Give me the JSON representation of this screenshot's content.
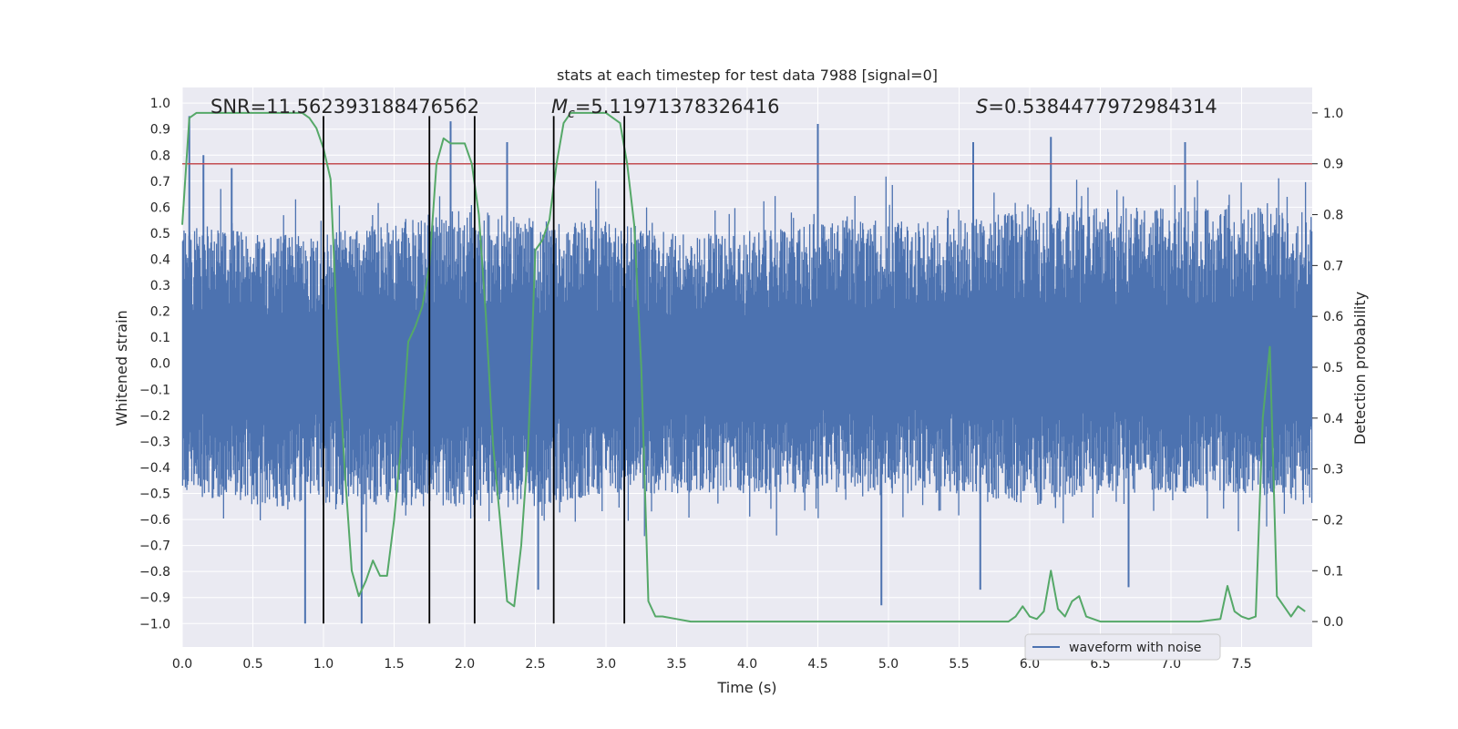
{
  "chart_data": {
    "type": "line",
    "title": "stats at each timestep for test data 7988 [signal=0]",
    "xlabel": "Time (s)",
    "ylabel_left": "Whitened strain",
    "ylabel_right": "Detection probability",
    "xlim": [
      0,
      8
    ],
    "ylim_left": [
      -1.09,
      1.06
    ],
    "ylim_right": [
      -0.05,
      1.05
    ],
    "grid": true,
    "legend_placement": "lower-right",
    "x_ticks": [
      "0.0",
      "0.5",
      "1.0",
      "1.5",
      "2.0",
      "2.5",
      "3.0",
      "3.5",
      "4.0",
      "4.5",
      "5.0",
      "5.5",
      "6.0",
      "6.5",
      "7.0",
      "7.5"
    ],
    "y_ticks_left": [
      "1.0",
      "0.9",
      "0.8",
      "0.7",
      "0.6",
      "0.5",
      "0.4",
      "0.3",
      "0.2",
      "0.1",
      "0.0",
      "−0.1",
      "−0.2",
      "−0.3",
      "−0.4",
      "−0.5",
      "−0.6",
      "−0.7",
      "−0.8",
      "−0.9",
      "−1.0"
    ],
    "y_ticks_right": [
      "1.0",
      "0.9",
      "0.8",
      "0.7",
      "0.6",
      "0.5",
      "0.4",
      "0.3",
      "0.2",
      "0.1",
      "0.0"
    ],
    "annotations": {
      "snr": "SNR=11.562393188476562",
      "mc_symbol": "M",
      "mc_sub": "c",
      "mc_value": "=5.11971378326416",
      "s_symbol": "S",
      "s_value": "=0.5384477972984314"
    },
    "threshold": {
      "value": 0.9,
      "axis": "right",
      "color": "#c44e52"
    },
    "vertical_lines": {
      "x": [
        1.0,
        1.75,
        2.07,
        2.63,
        3.13
      ],
      "y_range": [
        -1.0,
        0.95
      ],
      "color": "#000000"
    },
    "series": [
      {
        "name": "waveform with noise",
        "axis": "left",
        "color": "#4c72b0",
        "kind": "dense noisy strain",
        "envelope": {
          "x": [
            0.0,
            0.5,
            1.0,
            1.5,
            2.0,
            2.5,
            3.0,
            3.5,
            4.0,
            4.5,
            5.0,
            5.5,
            6.0,
            6.5,
            7.0,
            7.5,
            8.0
          ],
          "upper": [
            0.55,
            0.5,
            0.5,
            0.55,
            0.6,
            0.55,
            0.55,
            0.5,
            0.5,
            0.55,
            0.55,
            0.55,
            0.6,
            0.6,
            0.6,
            0.6,
            0.6
          ],
          "lower": [
            -0.5,
            -0.55,
            -0.55,
            -0.55,
            -0.55,
            -0.55,
            -0.5,
            -0.5,
            -0.5,
            -0.5,
            -0.5,
            -0.5,
            -0.55,
            -0.5,
            -0.5,
            -0.5,
            -0.55
          ]
        },
        "peaks": [
          {
            "x": 0.05,
            "y": 0.95
          },
          {
            "x": 0.15,
            "y": 0.8
          },
          {
            "x": 0.35,
            "y": 0.75
          },
          {
            "x": 1.9,
            "y": 0.93
          },
          {
            "x": 2.3,
            "y": 0.85
          },
          {
            "x": 4.5,
            "y": 0.92
          },
          {
            "x": 5.6,
            "y": 0.85
          },
          {
            "x": 6.15,
            "y": 0.87
          },
          {
            "x": 7.1,
            "y": 0.85
          },
          {
            "x": 0.87,
            "y": -1.0
          },
          {
            "x": 1.27,
            "y": -1.0
          },
          {
            "x": 2.52,
            "y": -0.87
          },
          {
            "x": 4.95,
            "y": -0.93
          },
          {
            "x": 5.65,
            "y": -0.87
          },
          {
            "x": 6.7,
            "y": -0.86
          }
        ]
      },
      {
        "name": "",
        "axis": "right",
        "color": "#55a868",
        "x": [
          0.0,
          0.05,
          0.1,
          0.2,
          0.3,
          0.5,
          0.7,
          0.85,
          0.9,
          0.95,
          1.0,
          1.05,
          1.1,
          1.15,
          1.2,
          1.25,
          1.3,
          1.35,
          1.4,
          1.45,
          1.5,
          1.55,
          1.6,
          1.65,
          1.7,
          1.75,
          1.8,
          1.85,
          1.9,
          1.95,
          2.0,
          2.05,
          2.1,
          2.15,
          2.2,
          2.25,
          2.3,
          2.35,
          2.4,
          2.45,
          2.5,
          2.55,
          2.6,
          2.65,
          2.7,
          2.75,
          2.8,
          2.9,
          3.0,
          3.1,
          3.15,
          3.2,
          3.25,
          3.3,
          3.35,
          3.4,
          3.5,
          3.6,
          3.8,
          4.0,
          4.2,
          4.5,
          5.0,
          5.5,
          5.85,
          5.9,
          5.95,
          6.0,
          6.05,
          6.1,
          6.15,
          6.2,
          6.25,
          6.3,
          6.35,
          6.4,
          6.45,
          6.5,
          6.6,
          6.8,
          7.0,
          7.2,
          7.35,
          7.4,
          7.45,
          7.5,
          7.55,
          7.6,
          7.65,
          7.7,
          7.75,
          7.8,
          7.85,
          7.9,
          7.95
        ],
        "values": [
          0.78,
          0.99,
          1.0,
          1.0,
          1.0,
          1.0,
          1.0,
          1.0,
          0.99,
          0.97,
          0.93,
          0.87,
          0.55,
          0.3,
          0.1,
          0.05,
          0.08,
          0.12,
          0.09,
          0.09,
          0.2,
          0.35,
          0.55,
          0.58,
          0.62,
          0.7,
          0.9,
          0.95,
          0.94,
          0.94,
          0.94,
          0.9,
          0.8,
          0.6,
          0.35,
          0.2,
          0.04,
          0.03,
          0.15,
          0.35,
          0.73,
          0.75,
          0.79,
          0.9,
          0.98,
          1.0,
          1.0,
          1.0,
          1.0,
          0.98,
          0.9,
          0.78,
          0.5,
          0.04,
          0.01,
          0.01,
          0.005,
          0.0,
          0.0,
          0.0,
          0.0,
          0.0,
          0.0,
          0.0,
          0.0,
          0.01,
          0.03,
          0.01,
          0.005,
          0.02,
          0.1,
          0.025,
          0.01,
          0.04,
          0.05,
          0.01,
          0.005,
          0.0,
          0.0,
          0.0,
          0.0,
          0.0,
          0.005,
          0.07,
          0.02,
          0.01,
          0.005,
          0.01,
          0.4,
          0.54,
          0.05,
          0.03,
          0.01,
          0.03,
          0.02
        ]
      }
    ]
  }
}
